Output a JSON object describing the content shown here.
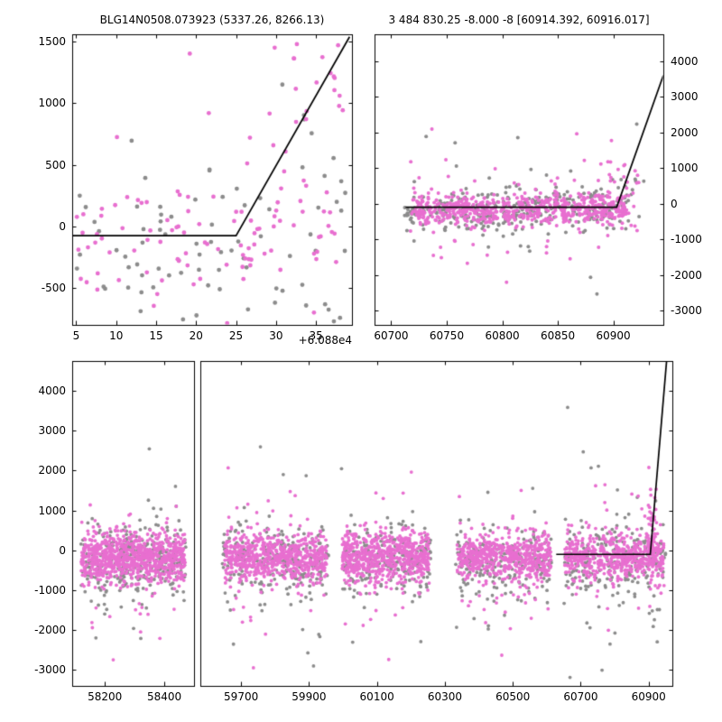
{
  "figure": {
    "background": "#ffffff",
    "colors": {
      "primary": "#e86fd0",
      "secondary": "#8c8c8c",
      "line": "#000000",
      "frame": "#000000",
      "text": "#000000"
    },
    "marker_shape": "circle"
  },
  "chart_data": [
    {
      "name": "event-zoom",
      "type": "scatter",
      "title": "BLG14N0508.073923 (5337.26, 8266.13)",
      "x_offset_label": "+6.088e4",
      "segments": [
        [
          4.5,
          39.5
        ]
      ],
      "ylim": [
        -800,
        1560
      ],
      "ytick_side": "left",
      "xticks": [
        {
          "v": 5,
          "label": "5"
        },
        {
          "v": 10,
          "label": "10"
        },
        {
          "v": 15,
          "label": "15"
        },
        {
          "v": 20,
          "label": "20"
        },
        {
          "v": 25,
          "label": "25"
        },
        {
          "v": 30,
          "label": "30"
        },
        {
          "v": 35,
          "label": "35"
        }
      ],
      "yticks": [
        {
          "v": -500,
          "label": "-500"
        },
        {
          "v": 0,
          "label": "0"
        },
        {
          "v": 500,
          "label": "500"
        },
        {
          "v": 1000,
          "label": "1000"
        },
        {
          "v": 1500,
          "label": "1500"
        }
      ],
      "line": [
        [
          4.5,
          -75
        ],
        [
          25,
          -75
        ],
        [
          39.2,
          1540
        ]
      ],
      "marker_radius": 2.4,
      "clusters": [
        {
          "series": "secondary",
          "n": 78,
          "x": [
            4.8,
            38.8
          ],
          "y": -170,
          "sigma": 300,
          "tailP": 0.12,
          "tailScale": 2.2
        },
        {
          "series": "secondary",
          "n": 6,
          "x": [
            30,
            38.5
          ],
          "y": 800,
          "sigma": 350,
          "tailP": 0,
          "tailScale": 1
        },
        {
          "series": "primary",
          "n": 108,
          "x": [
            4.8,
            38.8
          ],
          "y": -120,
          "sigma": 270,
          "tailP": 0.14,
          "tailScale": 2.4
        },
        {
          "series": "primary",
          "n": 22,
          "x": [
            29,
            38.6
          ],
          "y": 1020,
          "sigma": 330,
          "tailP": 0,
          "tailScale": 1
        }
      ]
    },
    {
      "name": "season-zoom",
      "type": "scatter",
      "title": "3 484 830.25 -8.000 -8 [60914.392, 60916.017]",
      "segments": [
        [
          60685,
          60945
        ]
      ],
      "ylim": [
        -3400,
        4750
      ],
      "ytick_side": "right",
      "xticks": [
        {
          "v": 60700,
          "label": "60700"
        },
        {
          "v": 60750,
          "label": "60750"
        },
        {
          "v": 60800,
          "label": "60800"
        },
        {
          "v": 60850,
          "label": "60850"
        },
        {
          "v": 60900,
          "label": "60900"
        }
      ],
      "yticks": [
        {
          "v": -3000,
          "label": "-3000"
        },
        {
          "v": -2000,
          "label": "-2000"
        },
        {
          "v": -1000,
          "label": "-1000"
        },
        {
          "v": 0,
          "label": "0"
        },
        {
          "v": 1000,
          "label": "1000"
        },
        {
          "v": 2000,
          "label": "2000"
        },
        {
          "v": 3000,
          "label": "3000"
        },
        {
          "v": 4000,
          "label": "4000"
        }
      ],
      "line": [
        [
          60713,
          -100
        ],
        [
          60903,
          -100
        ],
        [
          60945,
          3600
        ]
      ],
      "marker_radius": 2.0,
      "clusters": [
        {
          "series": "secondary",
          "n": 330,
          "x": [
            60712,
            60914
          ],
          "y": -170,
          "sigma": 330,
          "tailP": 0.1,
          "tailScale": 3.0
        },
        {
          "series": "secondary",
          "n": 14,
          "x": [
            60890,
            60935
          ],
          "y": 200,
          "sigma": 900,
          "tailP": 0,
          "tailScale": 1
        },
        {
          "series": "primary",
          "n": 660,
          "x": [
            60716,
            60912
          ],
          "y": -140,
          "sigma": 230,
          "tailP": 0.1,
          "tailScale": 3.4
        },
        {
          "series": "primary",
          "n": 34,
          "x": [
            60893,
            60924
          ],
          "y": 450,
          "sigma": 560,
          "tailP": 0.1,
          "tailScale": 1.8
        }
      ]
    },
    {
      "name": "full-lightcurve",
      "type": "scatter",
      "title": "",
      "segments": [
        [
          58090,
          58500
        ],
        [
          59580,
          60970
        ]
      ],
      "ylim": [
        -3400,
        4750
      ],
      "ytick_side": "left",
      "xticks": [
        {
          "v": 58200,
          "label": "58200"
        },
        {
          "v": 58400,
          "label": "58400"
        },
        {
          "v": 59700,
          "label": "59700"
        },
        {
          "v": 59900,
          "label": "59900"
        },
        {
          "v": 60100,
          "label": "60100"
        },
        {
          "v": 60300,
          "label": "60300"
        },
        {
          "v": 60500,
          "label": "60500"
        },
        {
          "v": 60700,
          "label": "60700"
        },
        {
          "v": 60900,
          "label": "60900"
        }
      ],
      "yticks": [
        {
          "v": -3000,
          "label": "-3000"
        },
        {
          "v": -2000,
          "label": "-2000"
        },
        {
          "v": -1000,
          "label": "-1000"
        },
        {
          "v": 0,
          "label": "0"
        },
        {
          "v": 1000,
          "label": "1000"
        },
        {
          "v": 2000,
          "label": "2000"
        },
        {
          "v": 3000,
          "label": "3000"
        },
        {
          "v": 4000,
          "label": "4000"
        }
      ],
      "line": [
        [
          60628,
          -100
        ],
        [
          60905,
          -100
        ],
        [
          60953,
          4750
        ]
      ],
      "marker_radius": 1.9,
      "clusters": [
        {
          "series": "secondary",
          "n": 320,
          "x": [
            58118,
            58472
          ],
          "y": -260,
          "sigma": 430,
          "tailP": 0.1,
          "tailScale": 2.8
        },
        {
          "series": "secondary",
          "n": 255,
          "x": [
            59645,
            59958
          ],
          "y": -260,
          "sigma": 430,
          "tailP": 0.1,
          "tailScale": 2.8
        },
        {
          "series": "secondary",
          "n": 235,
          "x": [
            59995,
            60258
          ],
          "y": -260,
          "sigma": 430,
          "tailP": 0.1,
          "tailScale": 2.8
        },
        {
          "series": "secondary",
          "n": 225,
          "x": [
            60332,
            60618
          ],
          "y": -260,
          "sigma": 420,
          "tailP": 0.1,
          "tailScale": 2.8
        },
        {
          "series": "secondary",
          "n": 250,
          "x": [
            60648,
            60950
          ],
          "y": -280,
          "sigma": 460,
          "tailP": 0.12,
          "tailScale": 2.8
        },
        {
          "series": "primary",
          "n": 850,
          "x": [
            58120,
            58470
          ],
          "y": -180,
          "sigma": 300,
          "tailP": 0.09,
          "tailScale": 3.2
        },
        {
          "series": "primary",
          "n": 680,
          "x": [
            59650,
            59952
          ],
          "y": -180,
          "sigma": 300,
          "tailP": 0.09,
          "tailScale": 3.2
        },
        {
          "series": "primary",
          "n": 640,
          "x": [
            59998,
            60254
          ],
          "y": -180,
          "sigma": 300,
          "tailP": 0.09,
          "tailScale": 3.2
        },
        {
          "series": "primary",
          "n": 600,
          "x": [
            60336,
            60612
          ],
          "y": -180,
          "sigma": 290,
          "tailP": 0.09,
          "tailScale": 3.2
        },
        {
          "series": "primary",
          "n": 560,
          "x": [
            60652,
            60946
          ],
          "y": -180,
          "sigma": 300,
          "tailP": 0.09,
          "tailScale": 3.2
        },
        {
          "series": "primary",
          "n": 48,
          "x": [
            60896,
            60928
          ],
          "y": 420,
          "sigma": 520,
          "tailP": 0,
          "tailScale": 1
        }
      ]
    }
  ]
}
